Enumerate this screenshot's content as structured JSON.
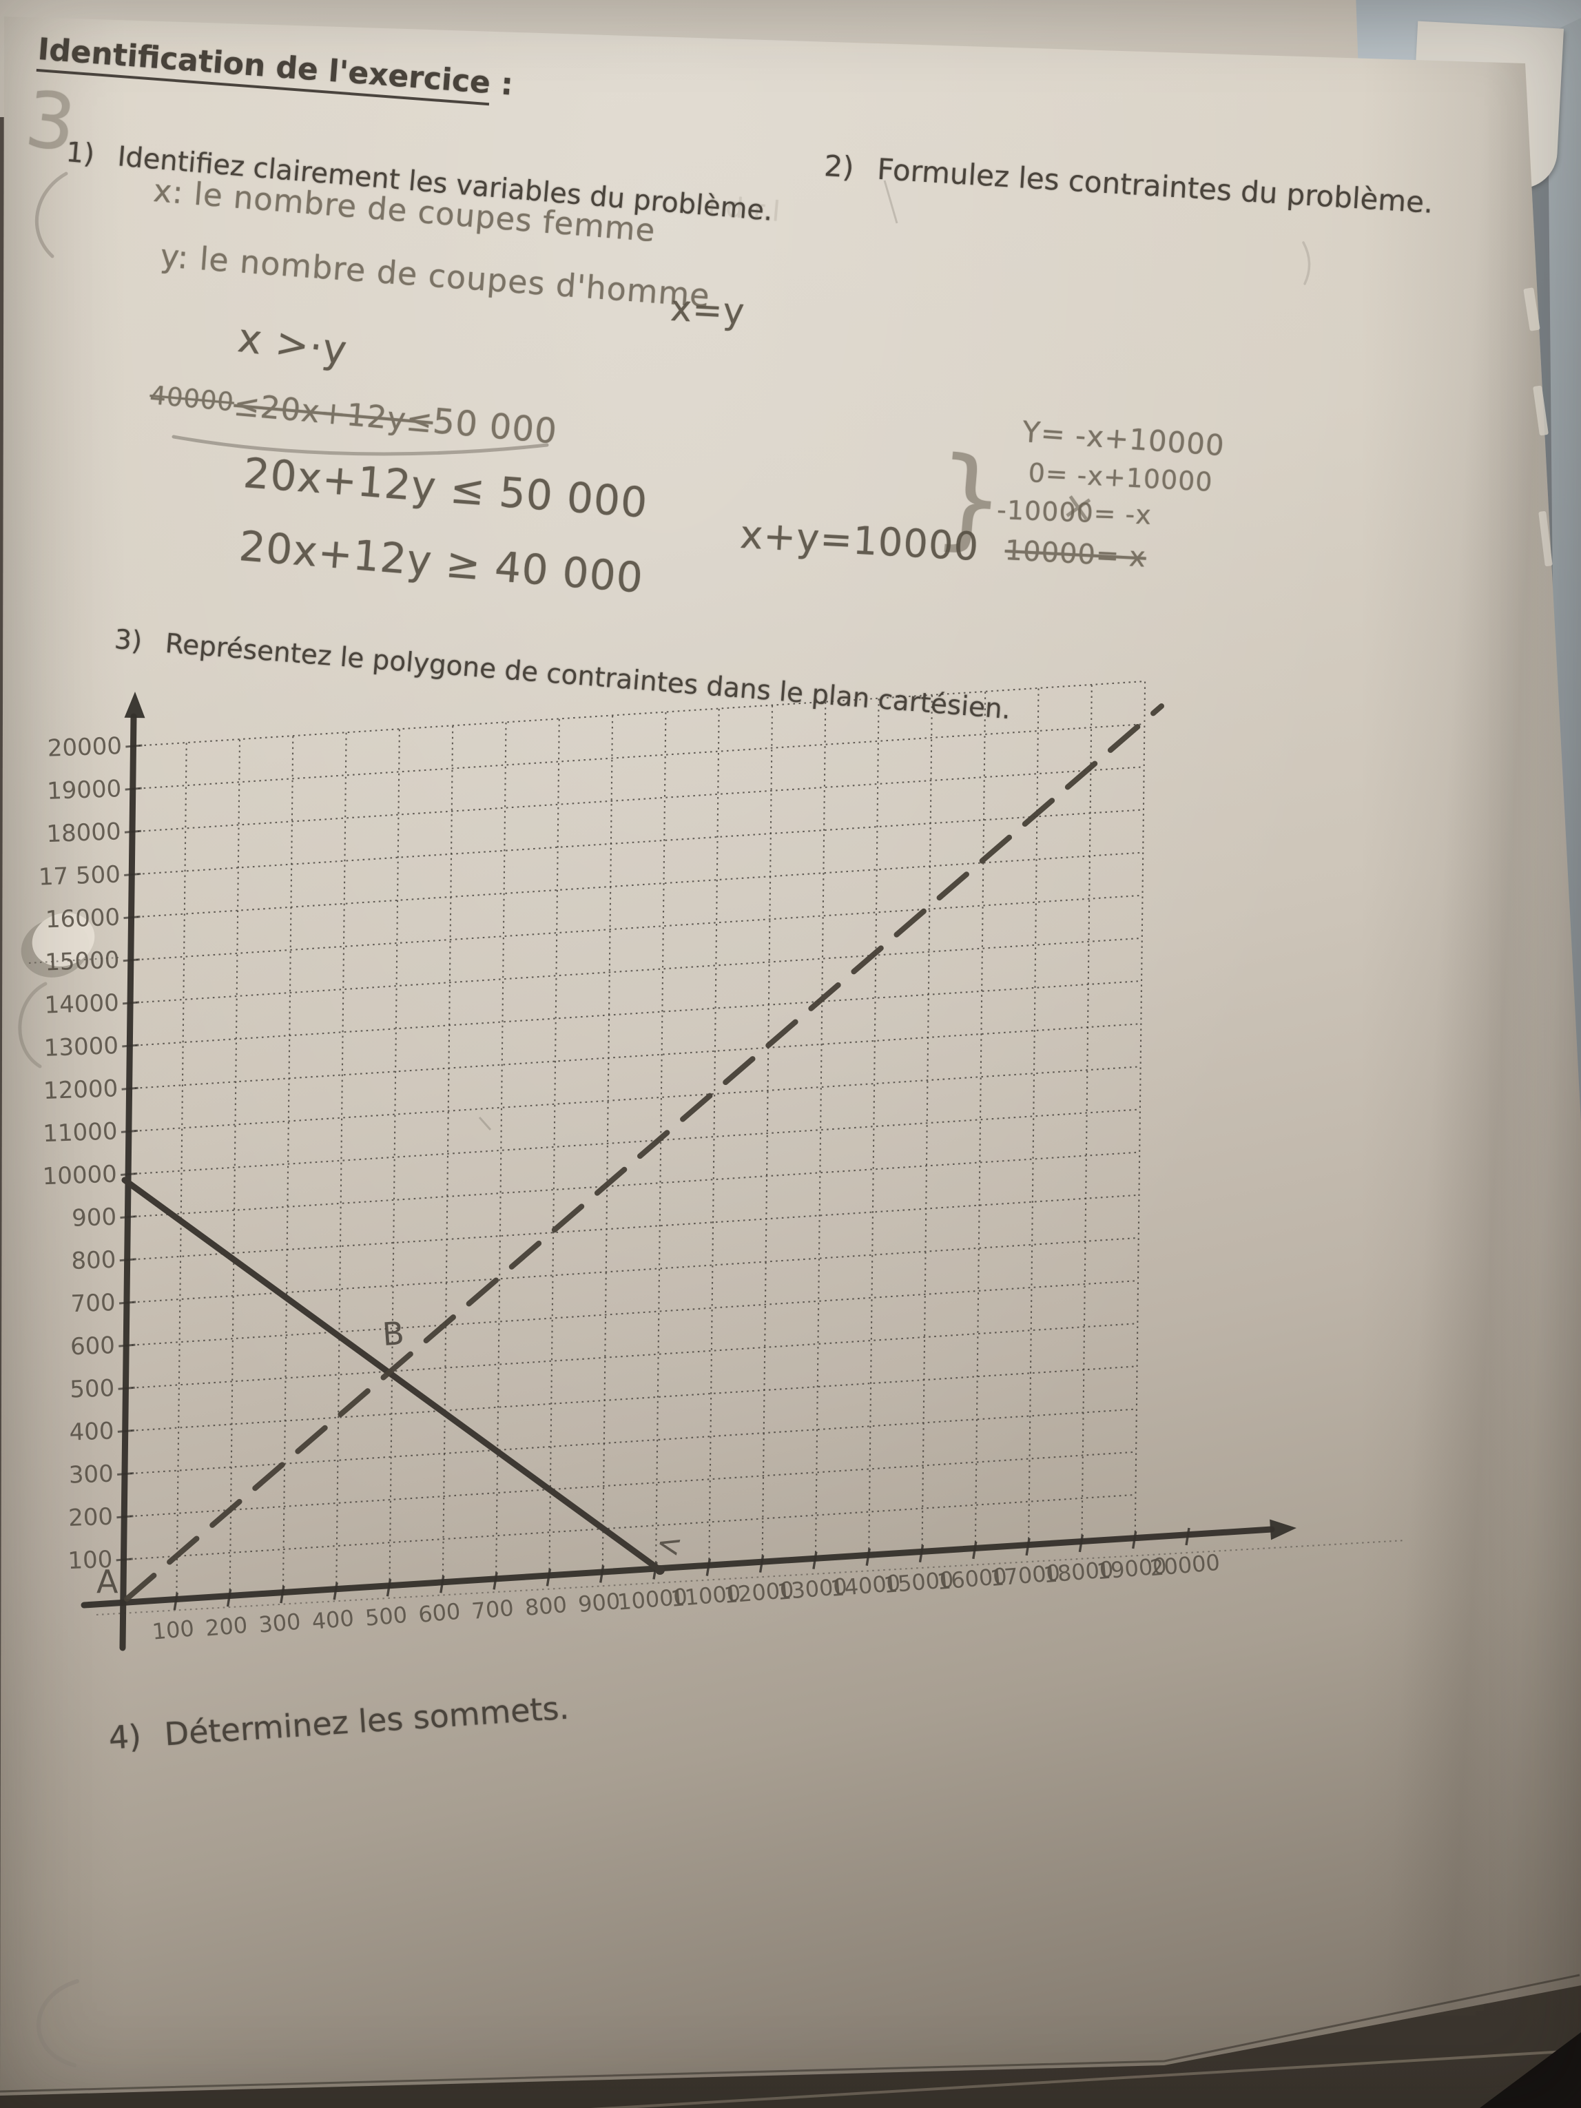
{
  "page": {
    "title": "Identification de l'exercice",
    "title_suffix": " :",
    "items": [
      {
        "num": "1)",
        "text": "Identifiez clairement les variables du problème."
      },
      {
        "num": "2)",
        "text": "Formulez les contraintes du problème."
      },
      {
        "num": "3)",
        "text": "Représentez le polygone de contraintes dans le plan cartésien."
      },
      {
        "num": "4)",
        "text": "Déterminez les sommets."
      }
    ]
  },
  "handwriting": {
    "margin_number": "3",
    "var_x": "x: le nombre de coupes femme",
    "var_y": "y: le nombre de coupes d'homme",
    "faint_scribble": "l  d  r.l",
    "ineq_xy": "x >·y",
    "eq_xy": "x=y",
    "struck": {
      "lead": "40000",
      "mid": "≤20x+12y≤",
      "tail": "50 000"
    },
    "eq1": "20x+12y ≤ 50 000",
    "eq2": "20x+12y ≥ 40 000",
    "brace": "}",
    "cross": "×",
    "eq_sum": "x+y=10000",
    "side_eq1": "Y= -x+10000",
    "side_eq2": "0= -x+10000",
    "side_eq3": "-10000= -x",
    "side_eq4": "10000= x"
  },
  "graph": {
    "y_axis_labels_top_to_bottom": [
      "20000",
      "19000",
      "18000",
      "17 500",
      "16000",
      "15000",
      "14000",
      "13000",
      "12000",
      "11000",
      "10000",
      "900",
      "800",
      "700",
      "600",
      "500",
      "400",
      "300",
      "200",
      "100"
    ],
    "x_axis_labels_left_to_right": [
      "100",
      "200",
      "300",
      "400",
      "500",
      "600",
      "700",
      "800",
      "900",
      "10000",
      "11000",
      "12000",
      "13000",
      "14000",
      "15000",
      "16000",
      "17000",
      "18000",
      "19000",
      "20000"
    ],
    "origin_label": "A",
    "intersection_label": "B",
    "corner_mark": "<",
    "grid": {
      "rows": 20,
      "cols": 20,
      "style": "dotted"
    },
    "lines": [
      {
        "name": "x-plus-y-equals-10000",
        "style": "solid",
        "from": "y-axis at 10000",
        "to": "x-axis at 10000"
      },
      {
        "name": "x-equals-y",
        "style": "dashed",
        "from": "origin A",
        "to": "beyond top-right corner of grid"
      }
    ]
  },
  "colors": {
    "paper_light": "#dcd5c9",
    "paper_dark": "#756c61",
    "pencil": "#6a6254",
    "ink": "#4a443c",
    "background_strip": "#8f979c",
    "table_dark": "#3a342d"
  }
}
